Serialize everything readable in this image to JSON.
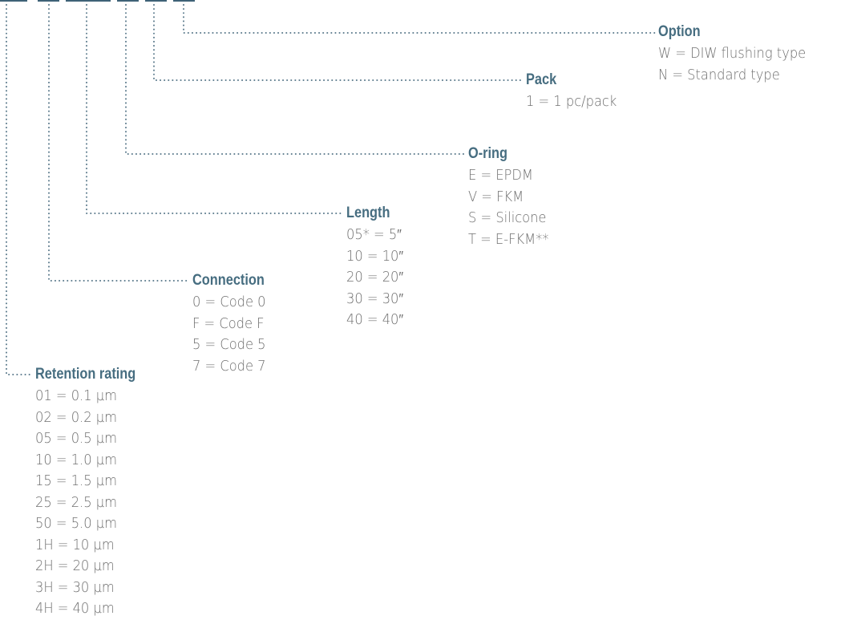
{
  "segments": {
    "option": {
      "title": "Option",
      "items": [
        "W =  DIW flushing type",
        "N  =  Standard type"
      ]
    },
    "pack": {
      "title": "Pack",
      "items": [
        "1  = 1 pc/pack"
      ]
    },
    "oring": {
      "title": "O-ring",
      "items": [
        "E = EPDM",
        "V = FKM",
        "S = Silicone",
        "T = E-FKM**"
      ]
    },
    "length": {
      "title": "Length",
      "items": [
        "05* = 5″",
        "10   = 10″",
        "20   = 20″",
        "30   = 30″",
        "40   = 40″"
      ]
    },
    "connection": {
      "title": "Connection",
      "items": [
        "0 = Code 0",
        "F = Code F",
        "5 = Code 5",
        "7 = Code 7"
      ]
    },
    "retention": {
      "title": "Retention rating",
      "items": [
        "01  = 0.1 µm",
        "02  = 0.2 µm",
        "05  = 0.5 µm",
        "10  = 1.0 µm",
        "15  = 1.5 µm",
        "25  = 2.5 µm",
        "50  = 5.0 µm",
        "1H = 10 µm",
        "2H = 20 µm",
        "3H = 30 µm",
        "4H = 40 µm"
      ]
    }
  }
}
